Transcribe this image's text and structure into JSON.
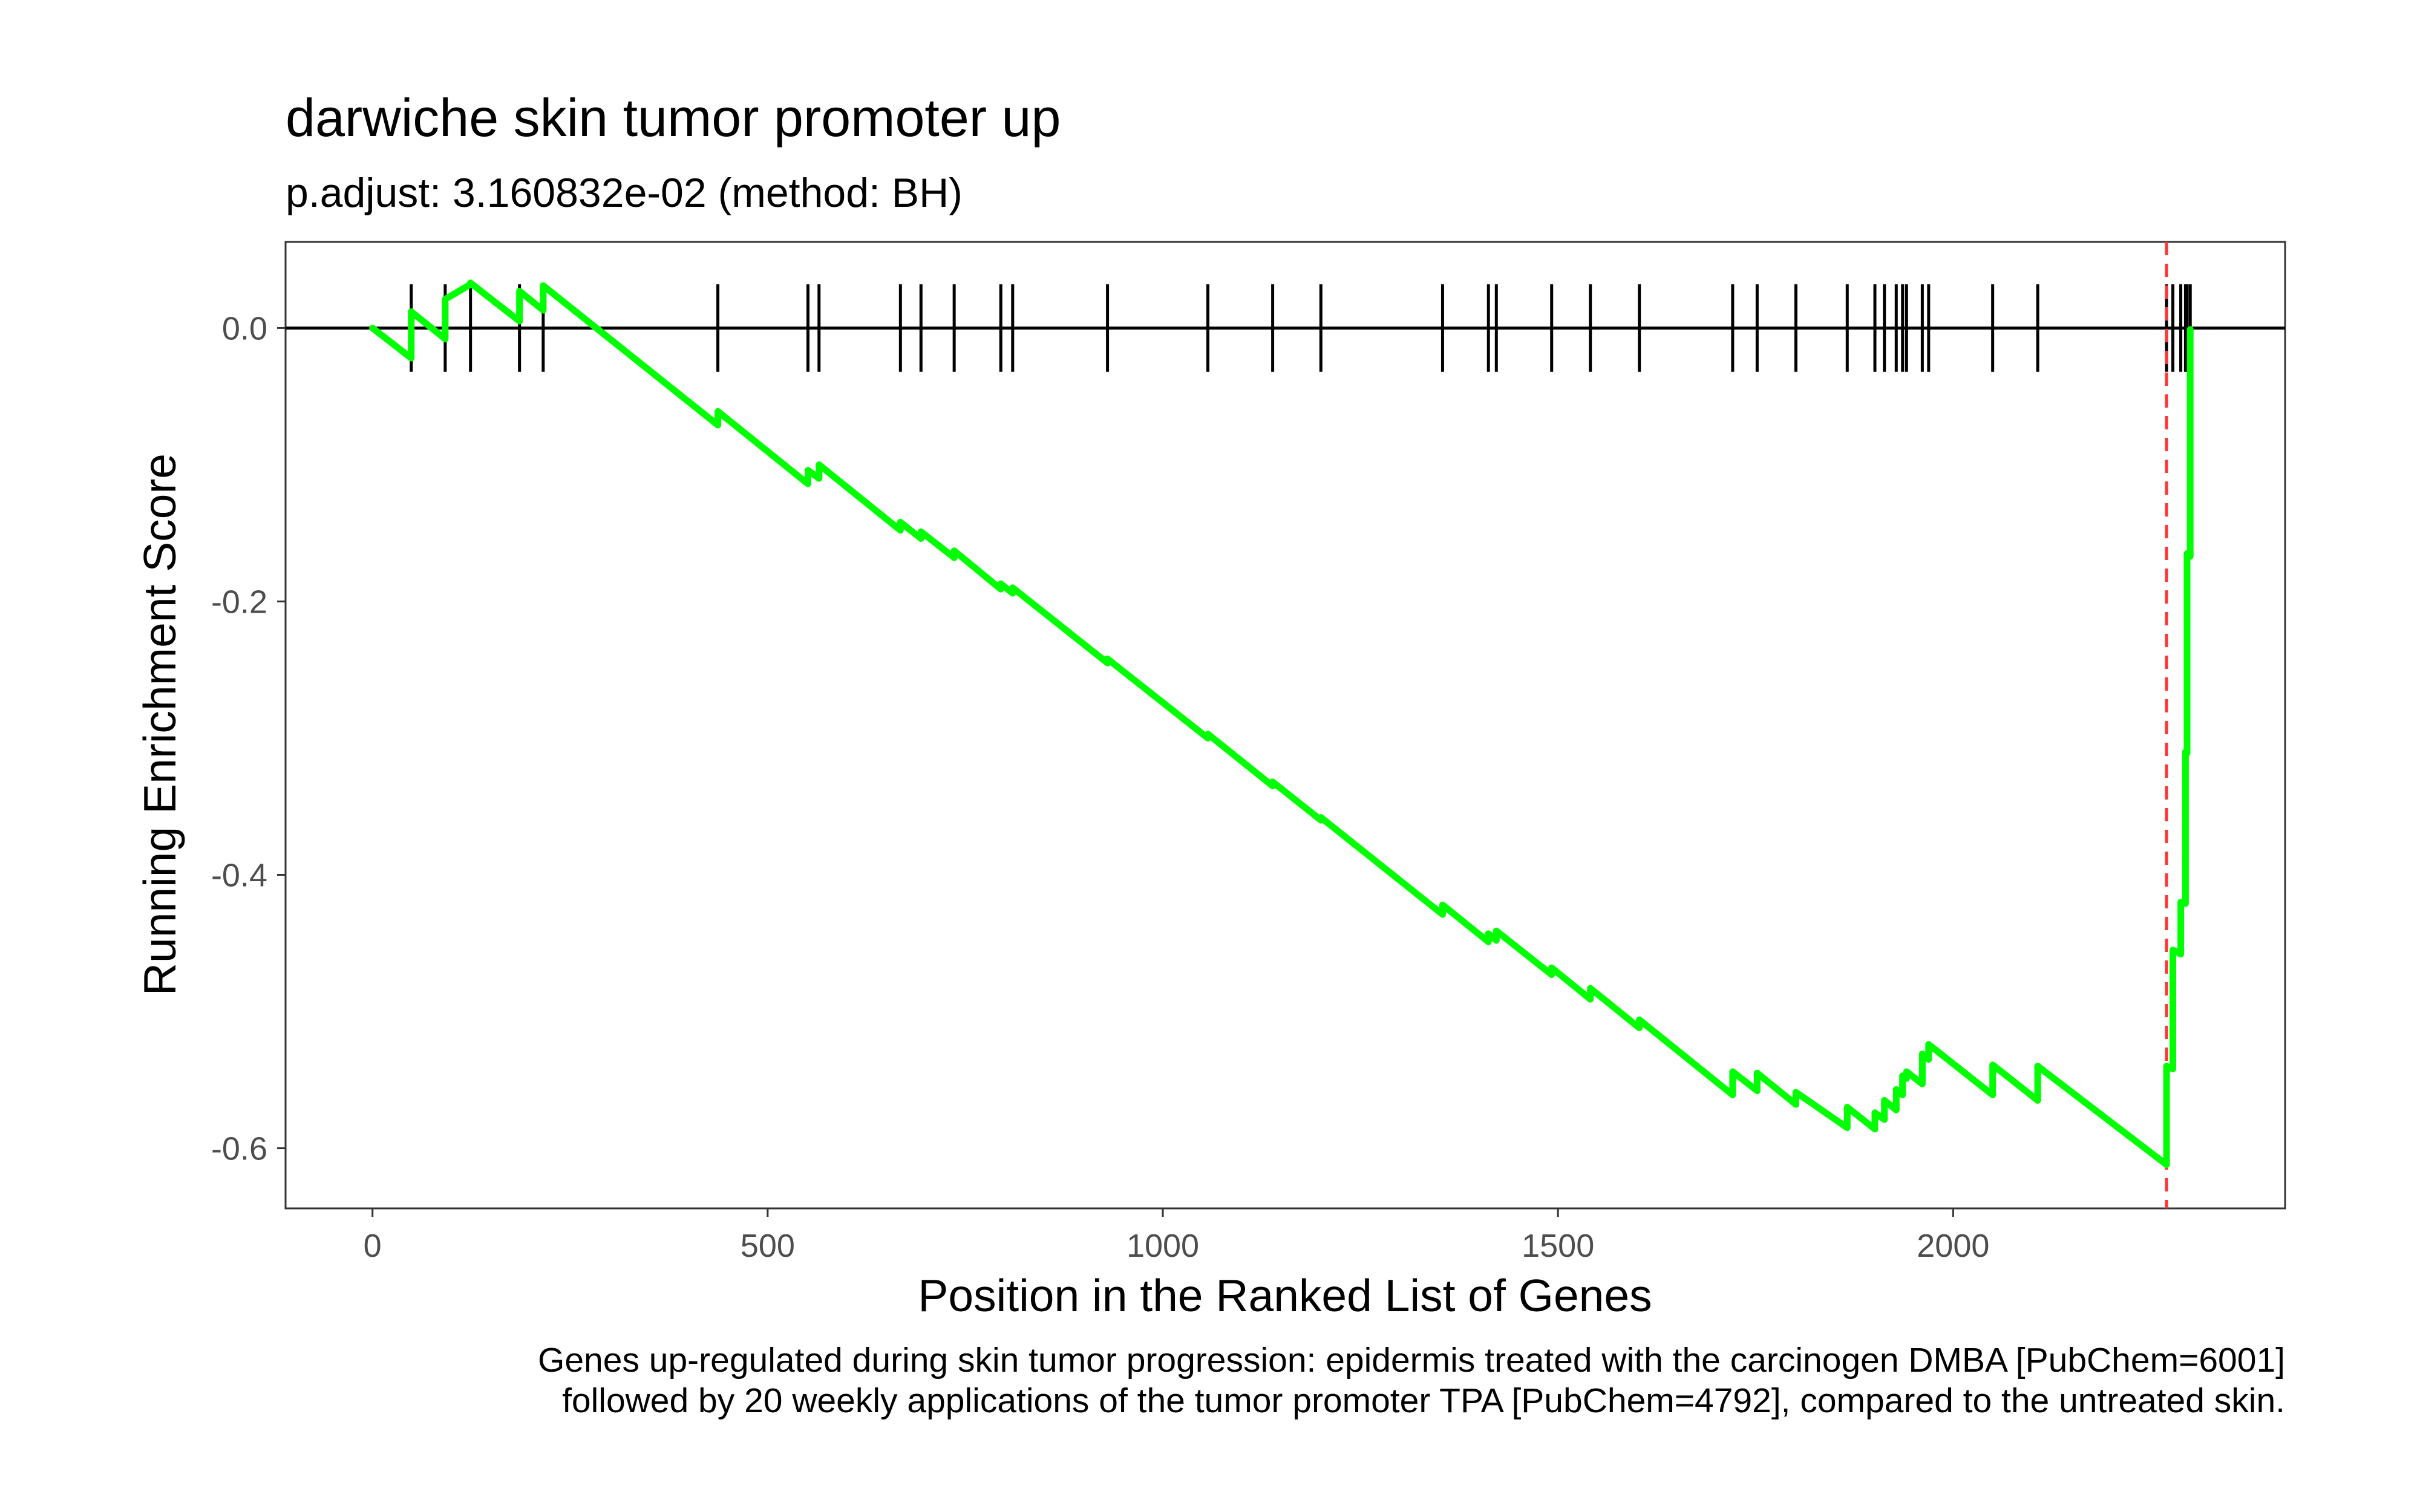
{
  "chart_data": {
    "type": "line",
    "title": "darwiche skin tumor promoter up",
    "subtitle": "p.adjust: 3.160832e-02 (method: BH)",
    "xlabel": "Position in the Ranked List of Genes",
    "ylabel": "Running Enrichment Score",
    "caption": [
      "Genes up-regulated during skin tumor progression: epidermis treated with the carcinogen DMBA [PubChem=6001]",
      "followed by 20 weekly applications of the tumor promoter TPA [PubChem=4792], compared to the untreated skin."
    ],
    "xlim": [
      -110,
      2420
    ],
    "ylim": [
      -0.644,
      0.063
    ],
    "x_ticks": [
      0,
      500,
      1000,
      1500,
      2000
    ],
    "y_ticks": [
      0.0,
      -0.2,
      -0.4,
      -0.6
    ],
    "x_tick_labels": [
      "0",
      "500",
      "1000",
      "1500",
      "2000"
    ],
    "y_tick_labels": [
      "0.0",
      "-0.2",
      "-0.4",
      "-0.6"
    ],
    "grid": false,
    "legend": "none",
    "series": [
      {
        "color": "#00ff00",
        "x": [
          0,
          49,
          49,
          92,
          92,
          124,
          124,
          186,
          186,
          216,
          216,
          437,
          437,
          551,
          551,
          565,
          565,
          668,
          668,
          694,
          694,
          736,
          736,
          795,
          795,
          810,
          810,
          930,
          930,
          1057,
          1057,
          1139,
          1139,
          1200,
          1200,
          1354,
          1354,
          1412,
          1412,
          1422,
          1422,
          1492,
          1492,
          1541,
          1541,
          1603,
          1603,
          1721,
          1721,
          1752,
          1752,
          1801,
          1801,
          1866,
          1866,
          1901,
          1901,
          1913,
          1913,
          1928,
          1928,
          1936,
          1936,
          1941,
          1941,
          1961,
          1961,
          1969,
          1969,
          2050,
          2050,
          2107,
          2107,
          2270,
          2270,
          2278,
          2278,
          2288,
          2288,
          2294,
          2294,
          2296,
          2296,
          2300,
          2300
        ],
        "y": [
          0.0,
          -0.022,
          0.012,
          -0.008,
          0.021,
          0.032,
          0.033,
          0.005,
          0.027,
          0.013,
          0.031,
          -0.071,
          -0.061,
          -0.114,
          -0.104,
          -0.11,
          -0.1,
          -0.148,
          -0.142,
          -0.154,
          -0.149,
          -0.168,
          -0.163,
          -0.191,
          -0.187,
          -0.194,
          -0.19,
          -0.245,
          -0.242,
          -0.3,
          -0.297,
          -0.335,
          -0.332,
          -0.36,
          -0.358,
          -0.429,
          -0.422,
          -0.449,
          -0.443,
          -0.448,
          -0.441,
          -0.473,
          -0.468,
          -0.491,
          -0.483,
          -0.512,
          -0.506,
          -0.561,
          -0.544,
          -0.558,
          -0.545,
          -0.568,
          -0.559,
          -0.585,
          -0.57,
          -0.586,
          -0.574,
          -0.579,
          -0.565,
          -0.572,
          -0.557,
          -0.561,
          -0.547,
          -0.549,
          -0.544,
          -0.553,
          -0.531,
          -0.535,
          -0.524,
          -0.561,
          -0.539,
          -0.565,
          -0.54,
          -0.612,
          -0.54,
          -0.542,
          -0.455,
          -0.458,
          -0.42,
          -0.421,
          -0.31,
          -0.311,
          -0.165,
          -0.167,
          -0.001
        ]
      }
    ],
    "gene_hits": [
      49,
      92,
      124,
      186,
      216,
      437,
      551,
      565,
      668,
      694,
      736,
      795,
      810,
      930,
      1057,
      1139,
      1200,
      1354,
      1412,
      1422,
      1492,
      1541,
      1603,
      1721,
      1752,
      1801,
      1866,
      1901,
      1913,
      1928,
      1936,
      1941,
      1961,
      1969,
      2050,
      2107,
      2270,
      2278,
      2288,
      2294,
      2296,
      2300
    ],
    "baseline_y": 0,
    "vline": {
      "x": 2270,
      "color": "#ff3333",
      "style": "dashed"
    }
  }
}
